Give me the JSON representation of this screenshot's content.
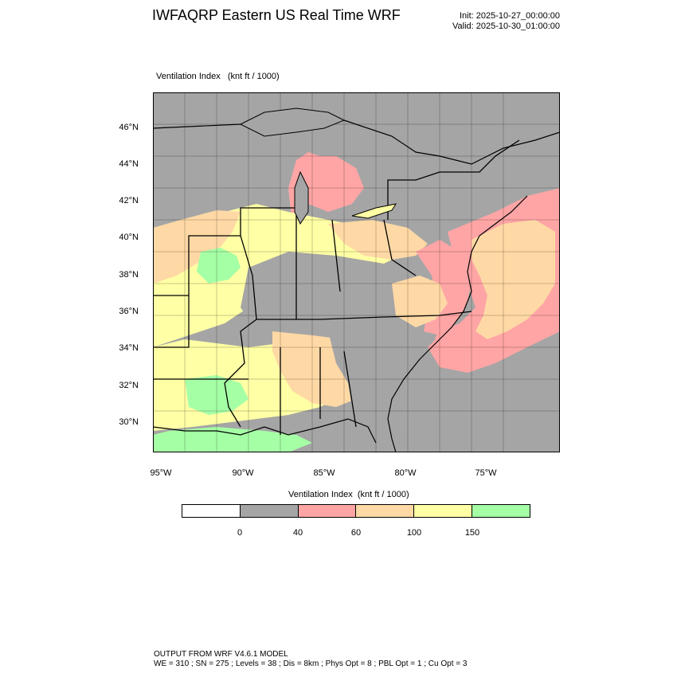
{
  "header": {
    "title": "IWFAQRP Eastern US Real Time WRF",
    "init": "Init: 2025-10-27_00:00:00",
    "valid": "Valid: 2025-10-30_01:00:00"
  },
  "map": {
    "field_label": "Ventilation Index   (knt ft / 1000)",
    "lat_labels": [
      "46°N",
      "44°N",
      "42°N",
      "40°N",
      "38°N",
      "36°N",
      "34°N",
      "32°N",
      "30°N"
    ],
    "lon_labels": [
      "95°W",
      "90°W",
      "85°W",
      "80°W",
      "75°W"
    ],
    "colors": {
      "no_data_gray": "#a5a5a5",
      "outside_gray": "#a5a5a5",
      "pink": "#ffa5a5",
      "tan": "#ffd9a5",
      "yellow": "#ffffa5",
      "green": "#a5ffa5"
    }
  },
  "legend": {
    "title": "Ventilation Index  (knt ft / 1000)",
    "swatches": [
      "#ffffff",
      "#a5a5a5",
      "#ffa5a5",
      "#ffd9a5",
      "#ffffa5",
      "#a5ffa5"
    ],
    "ticks": [
      "0",
      "40",
      "60",
      "100",
      "150"
    ]
  },
  "footer": {
    "line1": "OUTPUT FROM WRF V4.6.1 MODEL",
    "line2": "WE = 310 ; SN = 275 ; Levels = 38 ; Dis = 8km ; Phys Opt = 8 ; PBL Opt = 1 ; Cu Opt = 3"
  }
}
